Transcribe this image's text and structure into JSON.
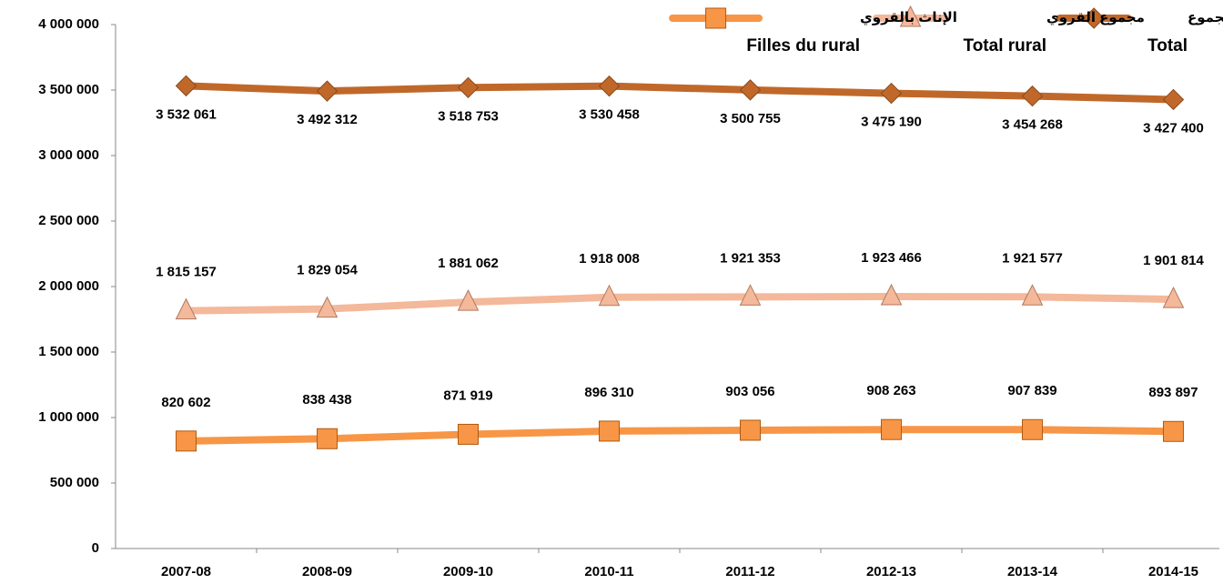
{
  "chart_data": {
    "type": "line",
    "categories": [
      "2007-08",
      "2008-09",
      "2009-10",
      "2010-11",
      "2011-12",
      "2012-13",
      "2013-14",
      "2014-15"
    ],
    "series": [
      {
        "name": "Total",
        "name_ar": "المجموع",
        "color": "#c0682a",
        "marker": "diamond",
        "values": [
          3532061,
          3492312,
          3518753,
          3530458,
          3500755,
          3475190,
          3454268,
          3427400
        ],
        "value_labels": [
          "3 532 061",
          "3 492 312",
          "3 518 753",
          "3 530 458",
          "3 500 755",
          "3 475 190",
          "3 454 268",
          "3 427 400"
        ]
      },
      {
        "name": "Total rural",
        "name_ar": "مجموع القروي",
        "color": "#f4b89a",
        "marker": "triangle",
        "values": [
          1815157,
          1829054,
          1881062,
          1918008,
          1921353,
          1923466,
          1921577,
          1901814
        ],
        "value_labels": [
          "1 815 157",
          "1 829 054",
          "1 881 062",
          "1 918 008",
          "1 921 353",
          "1 923 466",
          "1 921 577",
          "1 901 814"
        ]
      },
      {
        "name": "Filles du rural",
        "name_ar": "الإناث بالقروي",
        "color": "#f79646",
        "marker": "square",
        "values": [
          820602,
          838438,
          871919,
          896310,
          903056,
          908263,
          907839,
          893897
        ],
        "value_labels": [
          "820 602",
          "838 438",
          "871 919",
          "896 310",
          "903 056",
          "908 263",
          "907 839",
          "893 897"
        ]
      }
    ],
    "ylim": [
      0,
      4000000
    ],
    "yticks": [
      0,
      {
        "value": 500000,
        "label": "500 000"
      },
      {
        "value": 1000000,
        "label": "1 000 000"
      },
      {
        "value": 1500000,
        "label": "1 500 000"
      },
      {
        "value": 2000000,
        "label": "2 000 000"
      },
      {
        "value": 2500000,
        "label": "2 500 000"
      },
      {
        "value": 3000000,
        "label": "3 000 000"
      },
      {
        "value": 3500000,
        "label": "3 500 000"
      },
      {
        "value": 4000000,
        "label": "4 000 000"
      }
    ],
    "grid": false,
    "legend": "top-right"
  }
}
